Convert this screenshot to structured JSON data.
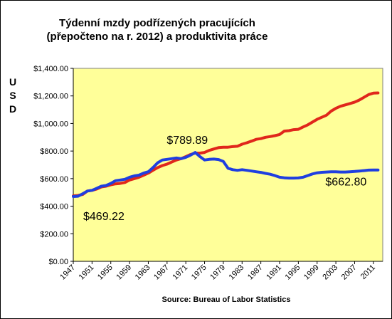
{
  "chart_data": {
    "type": "line",
    "title": [
      "Týdenní mzdy podřízených pracujících",
      "(přepočteno na r.  2012) a produktivita práce"
    ],
    "ylabel": "USD",
    "source": "Source:  Bureau  of  Labor Statistics",
    "ylim": [
      0,
      1400
    ],
    "yticks": [
      "$0.00",
      "$200.00",
      "$400.00",
      "$600.00",
      "$800.00",
      "$1,000.00",
      "$1,200.00",
      "$1,400.00"
    ],
    "xlim": [
      1947,
      2013
    ],
    "xticks": [
      "1947",
      "1951",
      "1955",
      "1959",
      "1963",
      "1967",
      "1971",
      "1975",
      "1979",
      "1983",
      "1987",
      "1991",
      "1995",
      "1999",
      "2003",
      "2007",
      "2011"
    ],
    "grid": false,
    "background_color": "#ffff99",
    "series": [
      {
        "color": "#e0271b",
        "points": [
          [
            1947,
            475
          ],
          [
            1948,
            478
          ],
          [
            1949,
            485
          ],
          [
            1950,
            510
          ],
          [
            1951,
            515
          ],
          [
            1952,
            525
          ],
          [
            1953,
            540
          ],
          [
            1954,
            545
          ],
          [
            1955,
            555
          ],
          [
            1956,
            562
          ],
          [
            1957,
            565
          ],
          [
            1958,
            572
          ],
          [
            1959,
            590
          ],
          [
            1960,
            600
          ],
          [
            1961,
            610
          ],
          [
            1962,
            625
          ],
          [
            1963,
            640
          ],
          [
            1964,
            660
          ],
          [
            1965,
            680
          ],
          [
            1966,
            695
          ],
          [
            1967,
            705
          ],
          [
            1968,
            720
          ],
          [
            1969,
            735
          ],
          [
            1970,
            745
          ],
          [
            1971,
            760
          ],
          [
            1972,
            775
          ],
          [
            1973,
            785
          ],
          [
            1974,
            785
          ],
          [
            1975,
            790
          ],
          [
            1976,
            805
          ],
          [
            1977,
            815
          ],
          [
            1978,
            825
          ],
          [
            1979,
            828
          ],
          [
            1980,
            828
          ],
          [
            1981,
            832
          ],
          [
            1982,
            835
          ],
          [
            1983,
            850
          ],
          [
            1984,
            860
          ],
          [
            1985,
            872
          ],
          [
            1986,
            885
          ],
          [
            1987,
            890
          ],
          [
            1988,
            900
          ],
          [
            1989,
            905
          ],
          [
            1990,
            912
          ],
          [
            1991,
            920
          ],
          [
            1992,
            945
          ],
          [
            1993,
            948
          ],
          [
            1994,
            955
          ],
          [
            1995,
            958
          ],
          [
            1996,
            975
          ],
          [
            1997,
            990
          ],
          [
            1998,
            1010
          ],
          [
            1999,
            1030
          ],
          [
            2000,
            1045
          ],
          [
            2001,
            1060
          ],
          [
            2002,
            1090
          ],
          [
            2003,
            1110
          ],
          [
            2004,
            1125
          ],
          [
            2005,
            1135
          ],
          [
            2006,
            1145
          ],
          [
            2007,
            1155
          ],
          [
            2008,
            1170
          ],
          [
            2009,
            1190
          ],
          [
            2010,
            1210
          ],
          [
            2011,
            1220
          ],
          [
            2012,
            1222
          ]
        ]
      },
      {
        "color": "#1f3fe0",
        "points": [
          [
            1947,
            470
          ],
          [
            1948,
            472
          ],
          [
            1949,
            490
          ],
          [
            1950,
            510
          ],
          [
            1951,
            515
          ],
          [
            1952,
            530
          ],
          [
            1953,
            545
          ],
          [
            1954,
            550
          ],
          [
            1955,
            565
          ],
          [
            1956,
            585
          ],
          [
            1957,
            590
          ],
          [
            1958,
            595
          ],
          [
            1959,
            610
          ],
          [
            1960,
            620
          ],
          [
            1961,
            625
          ],
          [
            1962,
            640
          ],
          [
            1963,
            650
          ],
          [
            1964,
            680
          ],
          [
            1965,
            715
          ],
          [
            1966,
            735
          ],
          [
            1967,
            740
          ],
          [
            1968,
            745
          ],
          [
            1969,
            750
          ],
          [
            1970,
            745
          ],
          [
            1971,
            755
          ],
          [
            1972,
            770
          ],
          [
            1973,
            790
          ],
          [
            1974,
            760
          ],
          [
            1975,
            735
          ],
          [
            1976,
            740
          ],
          [
            1977,
            742
          ],
          [
            1978,
            738
          ],
          [
            1979,
            725
          ],
          [
            1980,
            675
          ],
          [
            1981,
            665
          ],
          [
            1982,
            660
          ],
          [
            1983,
            665
          ],
          [
            1984,
            660
          ],
          [
            1985,
            655
          ],
          [
            1986,
            650
          ],
          [
            1987,
            645
          ],
          [
            1988,
            638
          ],
          [
            1989,
            632
          ],
          [
            1990,
            622
          ],
          [
            1991,
            610
          ],
          [
            1992,
            606
          ],
          [
            1993,
            604
          ],
          [
            1994,
            604
          ],
          [
            1995,
            605
          ],
          [
            1996,
            610
          ],
          [
            1997,
            622
          ],
          [
            1998,
            634
          ],
          [
            1999,
            642
          ],
          [
            2000,
            646
          ],
          [
            2001,
            648
          ],
          [
            2002,
            650
          ],
          [
            2003,
            650
          ],
          [
            2004,
            648
          ],
          [
            2005,
            648
          ],
          [
            2006,
            650
          ],
          [
            2007,
            652
          ],
          [
            2008,
            655
          ],
          [
            2009,
            658
          ],
          [
            2010,
            662
          ],
          [
            2011,
            663
          ],
          [
            2012,
            663
          ]
        ]
      }
    ],
    "annotations": [
      {
        "text": "$789.89",
        "x": 1973,
        "y": 790
      },
      {
        "text": "$469.22",
        "x": 1947,
        "y": 469
      },
      {
        "text": "$662.80",
        "x": 2012,
        "y": 663
      }
    ]
  }
}
